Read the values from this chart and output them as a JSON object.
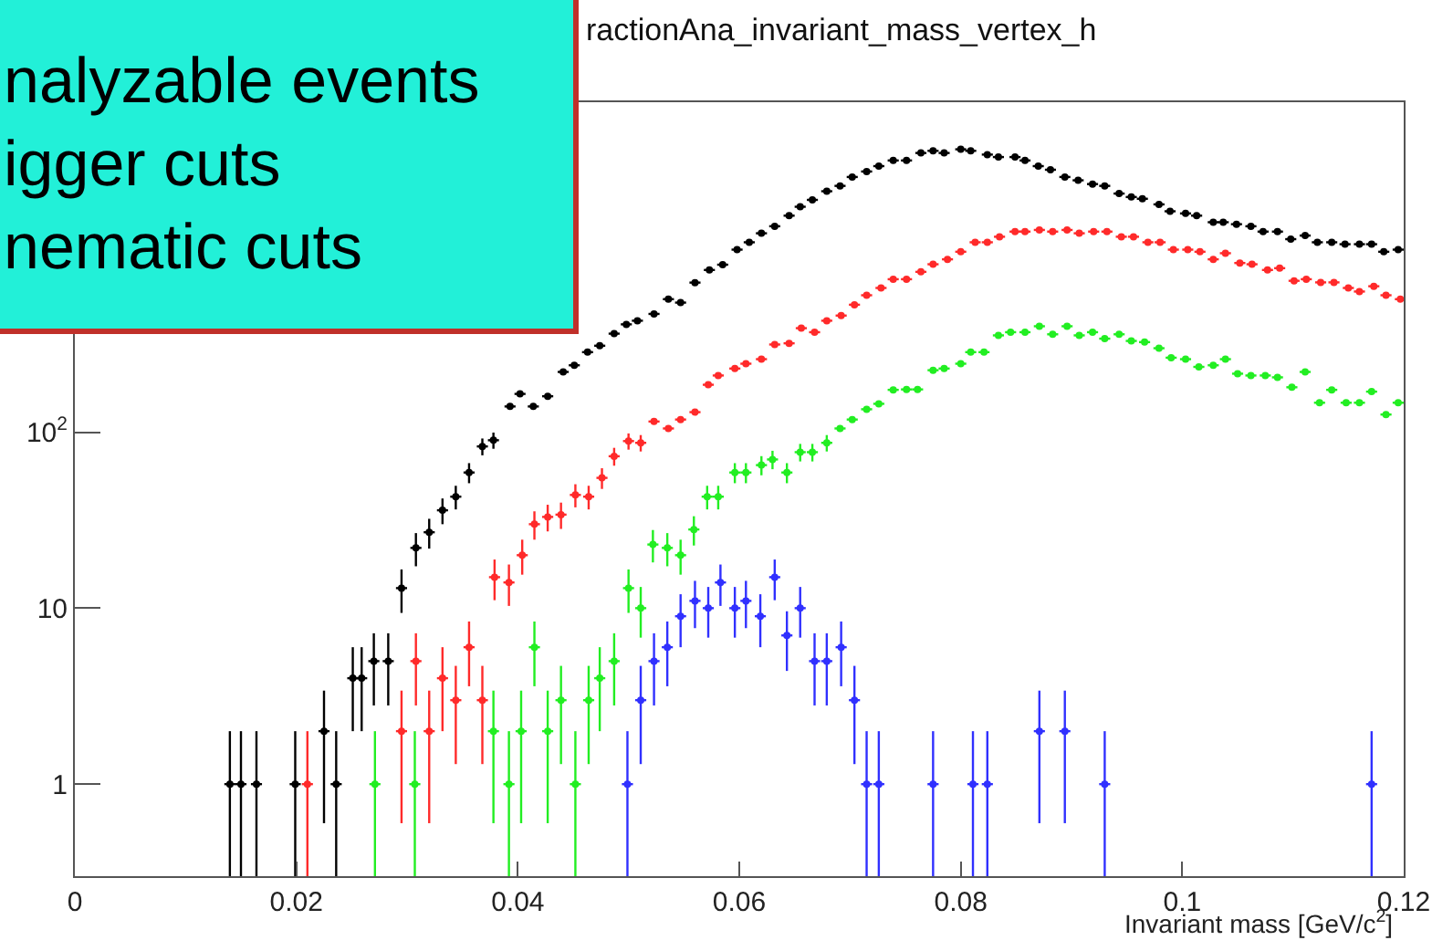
{
  "chart_data": {
    "type": "scatter",
    "title": "ractionAna_invariant_mass_vertex_h",
    "xlabel": "Invariant mass [GeV/c$^{2}$]",
    "annotations": [
      "nalyzable events",
      "igger cuts",
      "nematic cuts"
    ],
    "log": "y",
    "xlim": [
      0,
      0.12
    ],
    "xticks": [
      0,
      0.02,
      0.04,
      0.06,
      0.08,
      0.1,
      0.12
    ],
    "ylim": [
      0.3,
      7500
    ],
    "yticks": [
      1,
      10,
      {
        "value": 100,
        "label": "10$^{2}$"
      }
    ],
    "series": [
      {
        "color": "#000000",
        "xerrors": [
          0.0005,
          0.0005,
          0.0005,
          0.0005,
          0.0005,
          0.0005,
          0.0005,
          0.0005,
          0.0005,
          0.0005,
          0.0005,
          0.0005,
          0.0005,
          0.0005,
          0.0005,
          0.0005,
          0.0005,
          0.0005,
          0.0005,
          0.0005,
          0.0005,
          0.0005,
          0.0005,
          0.0005,
          0.0005,
          0.0005,
          0.0005,
          0.0005,
          0.0005,
          0.0005,
          0.0005,
          0.0005,
          0.0005,
          0.0005,
          0.0005,
          0.0005,
          0.0005,
          0.0005,
          0.0005,
          0.0005,
          0.0005,
          0.0005,
          0.0005,
          0.0005,
          0.0005,
          0.0005,
          0.0005,
          0.0005,
          0.0005,
          0.0005,
          0.0005,
          0.0005,
          0.0005,
          0.0005,
          0.0005,
          0.0005,
          0.0005,
          0.0005,
          0.0005,
          0.0005,
          0.0005,
          0.0005,
          0.0005,
          0.0005,
          0.0005,
          0.0005,
          0.0005,
          0.0005,
          0.0005,
          0.0005,
          0.0005,
          0.0005,
          0.0005,
          0.0005,
          0.0005,
          0.0005,
          0.0005,
          0.0005,
          0.0005,
          0.0005,
          0.0005,
          0.0005,
          0.0005,
          0.0005,
          0.0005,
          0.0005
        ],
        "x": [
          0.014,
          0.015,
          0.0164,
          0.0199,
          0.0225,
          0.0236,
          0.0251,
          0.0259,
          0.027,
          0.0283,
          0.0295,
          0.0308,
          0.032,
          0.0332,
          0.0344,
          0.0356,
          0.0368,
          0.0378,
          0.0393,
          0.0402,
          0.0414,
          0.0427,
          0.0441,
          0.0451,
          0.0463,
          0.0474,
          0.0487,
          0.0498,
          0.0508,
          0.0523,
          0.0536,
          0.0547,
          0.056,
          0.0573,
          0.0585,
          0.0598,
          0.0609,
          0.062,
          0.0632,
          0.0645,
          0.0655,
          0.0666,
          0.0679,
          0.0691,
          0.0702,
          0.0715,
          0.0726,
          0.0739,
          0.0751,
          0.0764,
          0.0775,
          0.0785,
          0.08,
          0.0809,
          0.0824,
          0.0834,
          0.0849,
          0.0858,
          0.087,
          0.0881,
          0.0894,
          0.0906,
          0.0919,
          0.093,
          0.0943,
          0.0954,
          0.0964,
          0.0979,
          0.0989,
          0.1003,
          0.1013,
          0.1028,
          0.1037,
          0.1049,
          0.1062,
          0.1073,
          0.1086,
          0.1098,
          0.1111,
          0.1122,
          0.1135,
          0.1147,
          0.116,
          0.1171,
          0.1182,
          0.1195
        ],
        "values": [
          1,
          1,
          1,
          1,
          2,
          1,
          4,
          4,
          5,
          5,
          13,
          22,
          27,
          36,
          43,
          59,
          83,
          90,
          140,
          165,
          140,
          160,
          220,
          240,
          285,
          310,
          363,
          410,
          430,
          470,
          570,
          545,
          708,
          835,
          895,
          1090,
          1200,
          1350,
          1480,
          1700,
          1910,
          2090,
          2340,
          2510,
          2820,
          3030,
          3250,
          3500,
          3500,
          3860,
          3970,
          3860,
          4050,
          3970,
          3780,
          3660,
          3660,
          3500,
          3250,
          3100,
          2820,
          2700,
          2570,
          2510,
          2270,
          2170,
          2120,
          1970,
          1800,
          1750,
          1700,
          1560,
          1560,
          1520,
          1480,
          1380,
          1380,
          1250,
          1310,
          1200,
          1200,
          1170,
          1170,
          1170,
          1060,
          1090
        ],
        "errors": [
          [
            0.3,
            2
          ],
          [
            0.3,
            2
          ],
          [
            0.3,
            2
          ],
          [
            0.3,
            2
          ],
          1.4,
          [
            0.3,
            2
          ],
          2,
          2,
          2.2,
          2.2,
          3.6,
          4.7,
          5.2,
          6,
          6.6,
          7.7,
          9.1,
          9.5,
          null,
          null,
          null,
          null,
          null,
          null,
          null,
          null,
          null,
          null,
          null,
          null,
          null,
          null,
          null,
          null,
          null,
          null,
          null,
          null,
          null,
          null,
          null,
          null,
          null,
          null,
          null,
          null,
          null,
          null,
          null,
          null,
          null,
          null,
          null,
          null,
          null,
          null,
          null,
          null,
          null,
          null,
          null,
          null,
          null,
          null,
          null,
          null,
          null,
          null,
          null,
          null,
          null,
          null,
          null,
          null,
          null,
          null,
          null,
          null,
          null,
          null,
          null,
          null,
          null,
          null,
          null,
          null
        ]
      },
      {
        "color": "#ff2a2a",
        "xerrors": [
          0.0005,
          0.0005,
          0.0005,
          0.0005,
          0.0005,
          0.0005,
          0.0005,
          0.0005,
          0.0005,
          0.0005,
          0.0005,
          0.0005,
          0.0005,
          0.0005,
          0.0005,
          0.0005,
          0.0005,
          0.0005,
          0.0005,
          0.0005,
          0.0005,
          0.0005,
          0.0005,
          0.0005,
          0.0005,
          0.0005,
          0.0005,
          0.0005,
          0.0005,
          0.0005,
          0.0005,
          0.0005,
          0.0005,
          0.0005,
          0.0005,
          0.0005,
          0.0005,
          0.0005,
          0.0005,
          0.0005,
          0.0005,
          0.0005,
          0.0005,
          0.0005,
          0.0005,
          0.0005,
          0.0005,
          0.0005,
          0.0005,
          0.0005,
          0.0005,
          0.0005,
          0.0005,
          0.0005,
          0.0005,
          0.0005,
          0.0005,
          0.0005,
          0.0005,
          0.0005,
          0.0005,
          0.0005,
          0.0005,
          0.0005,
          0.0005,
          0.0005,
          0.0005,
          0.0005,
          0.0005,
          0.0005,
          0.0005,
          0.0005,
          0.0005,
          0.0005,
          0.0005,
          0.0005,
          0.0005
        ],
        "x": [
          0.021,
          0.0295,
          0.0308,
          0.032,
          0.0332,
          0.0344,
          0.0356,
          0.0368,
          0.0379,
          0.0392,
          0.0404,
          0.0415,
          0.0427,
          0.0439,
          0.0452,
          0.0464,
          0.0476,
          0.0487,
          0.05,
          0.0511,
          0.0523,
          0.0536,
          0.0547,
          0.056,
          0.0572,
          0.0581,
          0.0596,
          0.0606,
          0.062,
          0.0632,
          0.0645,
          0.0656,
          0.0668,
          0.0679,
          0.0692,
          0.0704,
          0.0715,
          0.0728,
          0.0739,
          0.0751,
          0.0764,
          0.0775,
          0.0788,
          0.08,
          0.0813,
          0.0824,
          0.0835,
          0.0849,
          0.0858,
          0.0871,
          0.0883,
          0.0896,
          0.0907,
          0.092,
          0.0932,
          0.0945,
          0.0956,
          0.0969,
          0.098,
          0.0992,
          0.1005,
          0.1016,
          0.1028,
          0.1039,
          0.1052,
          0.1063,
          0.1077,
          0.1088,
          0.1101,
          0.1112,
          0.1125,
          0.1137,
          0.115,
          0.116,
          0.1173,
          0.1184,
          0.1197
        ],
        "values": [
          1,
          2,
          5,
          2,
          4,
          3,
          6,
          3,
          15,
          14,
          20,
          30,
          33,
          34,
          44,
          43,
          55,
          73,
          89,
          87,
          115,
          105,
          118,
          130,
          186,
          210,
          230,
          245,
          260,
          315,
          320,
          390,
          370,
          430,
          460,
          530,
          600,
          660,
          740,
          740,
          815,
          900,
          960,
          1060,
          1200,
          1200,
          1290,
          1380,
          1380,
          1410,
          1380,
          1410,
          1350,
          1380,
          1380,
          1290,
          1290,
          1200,
          1200,
          1090,
          1090,
          1060,
          960,
          1040,
          915,
          900,
          835,
          855,
          725,
          740,
          710,
          710,
          660,
          630,
          675,
          600,
          570
        ],
        "errors": [
          [
            0.3,
            2
          ],
          1.4,
          2.2,
          1.4,
          2,
          1.7,
          2.4,
          1.7,
          3.9,
          3.7,
          4.5,
          5.5,
          5.7,
          5.8,
          6.6,
          6.6,
          7.4,
          8.5,
          9.4,
          9.3,
          null,
          null,
          null,
          null,
          null,
          null,
          null,
          null,
          null,
          null,
          null,
          null,
          null,
          null,
          null,
          null,
          null,
          null,
          null,
          null,
          null,
          null,
          null,
          null,
          null,
          null,
          null,
          null,
          null,
          null,
          null,
          null,
          null,
          null,
          null,
          null,
          null,
          null,
          null,
          null,
          null,
          null,
          null,
          null,
          null,
          null,
          null,
          null,
          null,
          null,
          null,
          null,
          null,
          null,
          null,
          null,
          null
        ]
      },
      {
        "color": "#22ee22",
        "xerrors": [
          0.0005,
          0.0005,
          0.0005,
          0.0005,
          0.0005,
          0.0005,
          0.0005,
          0.0005,
          0.0005,
          0.0005,
          0.0005,
          0.0005,
          0.0005,
          0.0005,
          0.0005,
          0.0005,
          0.0005,
          0.0005,
          0.0005,
          0.0005,
          0.0005,
          0.0005,
          0.0005,
          0.0005,
          0.0005,
          0.0005,
          0.0005,
          0.0005,
          0.0005,
          0.0005,
          0.0005,
          0.0005,
          0.0005,
          0.0005,
          0.0005,
          0.0005,
          0.0005,
          0.0005,
          0.0005,
          0.0005,
          0.0005,
          0.0005,
          0.0005,
          0.0005,
          0.0005,
          0.0005,
          0.0005,
          0.0005,
          0.0005,
          0.0005,
          0.0005,
          0.0005,
          0.0005,
          0.0005,
          0.0005,
          0.0005,
          0.0005,
          0.0005,
          0.0005,
          0.0005,
          0.0005,
          0.0005,
          0.0005,
          0.0005,
          0.0005,
          0.0005,
          0.0005,
          0.0005,
          0.0005,
          0.0005,
          0.0005
        ],
        "x": [
          0.0271,
          0.0307,
          0.0378,
          0.0392,
          0.0403,
          0.0415,
          0.0427,
          0.0439,
          0.0452,
          0.0464,
          0.0474,
          0.0487,
          0.05,
          0.0511,
          0.0522,
          0.0535,
          0.0547,
          0.0559,
          0.0571,
          0.0581,
          0.0596,
          0.0606,
          0.062,
          0.063,
          0.0643,
          0.0655,
          0.0666,
          0.0679,
          0.0691,
          0.0702,
          0.0715,
          0.0726,
          0.0739,
          0.0751,
          0.0761,
          0.0775,
          0.0785,
          0.08,
          0.0809,
          0.0821,
          0.0834,
          0.0845,
          0.0858,
          0.0871,
          0.0883,
          0.0896,
          0.0907,
          0.0919,
          0.093,
          0.0943,
          0.0954,
          0.0966,
          0.0979,
          0.099,
          0.1003,
          0.1015,
          0.1028,
          0.1039,
          0.105,
          0.1062,
          0.1075,
          0.1086,
          0.1099,
          0.1111,
          0.1124,
          0.1135,
          0.1148,
          0.116,
          0.1171,
          0.1184,
          0.1195
        ],
        "values": [
          1,
          1,
          2,
          1,
          2,
          6,
          2,
          3,
          1,
          3,
          4,
          5,
          13,
          10,
          23,
          22,
          20,
          28,
          43,
          43,
          59,
          59,
          65,
          70,
          59,
          77,
          77,
          87,
          105,
          118,
          135,
          145,
          174,
          175,
          175,
          225,
          230,
          245,
          285,
          285,
          355,
          370,
          370,
          400,
          360,
          400,
          355,
          370,
          340,
          360,
          330,
          325,
          300,
          265,
          260,
          235,
          240,
          260,
          215,
          210,
          210,
          205,
          180,
          220,
          147,
          174,
          147,
          147,
          170,
          126,
          147
        ],
        "errors": [
          [
            0.3,
            2
          ],
          [
            0.3,
            2
          ],
          1.4,
          [
            0.3,
            2
          ],
          1.4,
          2.4,
          1.4,
          1.7,
          [
            0.3,
            2
          ],
          1.7,
          2,
          2.2,
          3.6,
          3.2,
          4.8,
          4.7,
          4.5,
          5.3,
          6.6,
          6.6,
          7.7,
          7.7,
          8.1,
          8.4,
          7.7,
          8.8,
          8.8,
          9.3,
          null,
          null,
          null,
          null,
          null,
          null,
          null,
          null,
          null,
          null,
          null,
          null,
          null,
          null,
          null,
          null,
          null,
          null,
          null,
          null,
          null,
          null,
          null,
          null,
          null,
          null,
          null,
          null,
          null,
          null,
          null,
          null,
          null,
          null,
          null,
          null,
          null,
          null,
          null,
          null,
          null,
          null,
          null
        ]
      },
      {
        "color": "#3030ff",
        "xerrors": [
          0.0005,
          0.0005,
          0.0005,
          0.0005,
          0.0005,
          0.0005,
          0.0005,
          0.0005,
          0.0005,
          0.0005,
          0.0005,
          0.0005,
          0.0005,
          0.0005,
          0.0005,
          0.0005,
          0.0005,
          0.0005,
          0.0005,
          0.0005,
          0.0005,
          0.0005,
          0.0005,
          0.0005,
          0.0005,
          0.0005,
          0.0005
        ],
        "x": [
          0.0499,
          0.0511,
          0.0523,
          0.0535,
          0.0547,
          0.056,
          0.0572,
          0.0583,
          0.0596,
          0.0606,
          0.0619,
          0.0632,
          0.0643,
          0.0655,
          0.0668,
          0.0679,
          0.0692,
          0.0704,
          0.0715,
          0.0726,
          0.0775,
          0.0811,
          0.0824,
          0.0871,
          0.0894,
          0.093,
          0.1171
        ],
        "values": [
          1,
          3,
          5,
          6,
          9,
          11,
          10,
          14,
          10,
          11,
          9,
          15,
          7,
          10,
          5,
          5,
          6,
          3,
          1,
          1,
          1,
          1,
          1,
          2,
          2,
          1,
          1
        ],
        "errors": [
          [
            0.3,
            2
          ],
          1.7,
          2.2,
          2.4,
          3,
          3.3,
          3.2,
          3.7,
          3.2,
          3.3,
          3,
          3.9,
          2.6,
          3.2,
          2.2,
          2.2,
          2.4,
          1.7,
          [
            0.3,
            2
          ],
          [
            0.3,
            2
          ],
          [
            0.3,
            2
          ],
          [
            0.3,
            2
          ],
          [
            0.3,
            2
          ],
          1.4,
          1.4,
          [
            0.3,
            2
          ],
          [
            0.3,
            2
          ]
        ]
      }
    ]
  }
}
